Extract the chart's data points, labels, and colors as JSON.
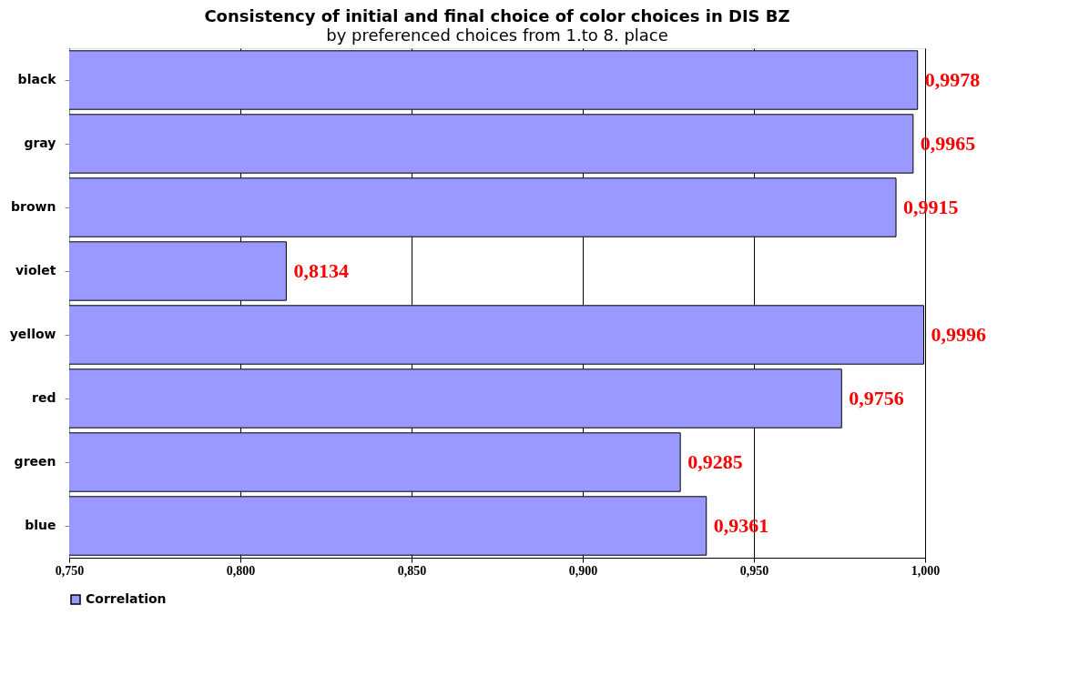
{
  "chart_data": {
    "type": "bar",
    "orientation": "horizontal",
    "title": "Consistency of initial and final choice of color choices in DIS BZ",
    "subtitle": "by preferenced choices from 1.to 8. place",
    "categories": [
      "black",
      "gray",
      "brown",
      "violet",
      "yellow",
      "red",
      "green",
      "blue"
    ],
    "series": [
      {
        "name": "Correlation",
        "color": "#9999ff",
        "values": [
          0.9978,
          0.9965,
          0.9915,
          0.8134,
          0.9996,
          0.9756,
          0.9285,
          0.9361
        ],
        "value_labels": [
          "0,9978",
          "0,9965",
          "0,9915",
          "0,8134",
          "0,9996",
          "0,9756",
          "0,9285",
          "0,9361"
        ]
      }
    ],
    "xlim": [
      0.75,
      1.0
    ],
    "xticks": [
      {
        "value": 0.75,
        "label": "0,750"
      },
      {
        "value": 0.8,
        "label": "0,800"
      },
      {
        "value": 0.85,
        "label": "0,850"
      },
      {
        "value": 0.9,
        "label": "0,900"
      },
      {
        "value": 0.95,
        "label": "0,950"
      },
      {
        "value": 1.0,
        "label": "1,000"
      }
    ],
    "grid": "x",
    "legend": "bottom"
  }
}
